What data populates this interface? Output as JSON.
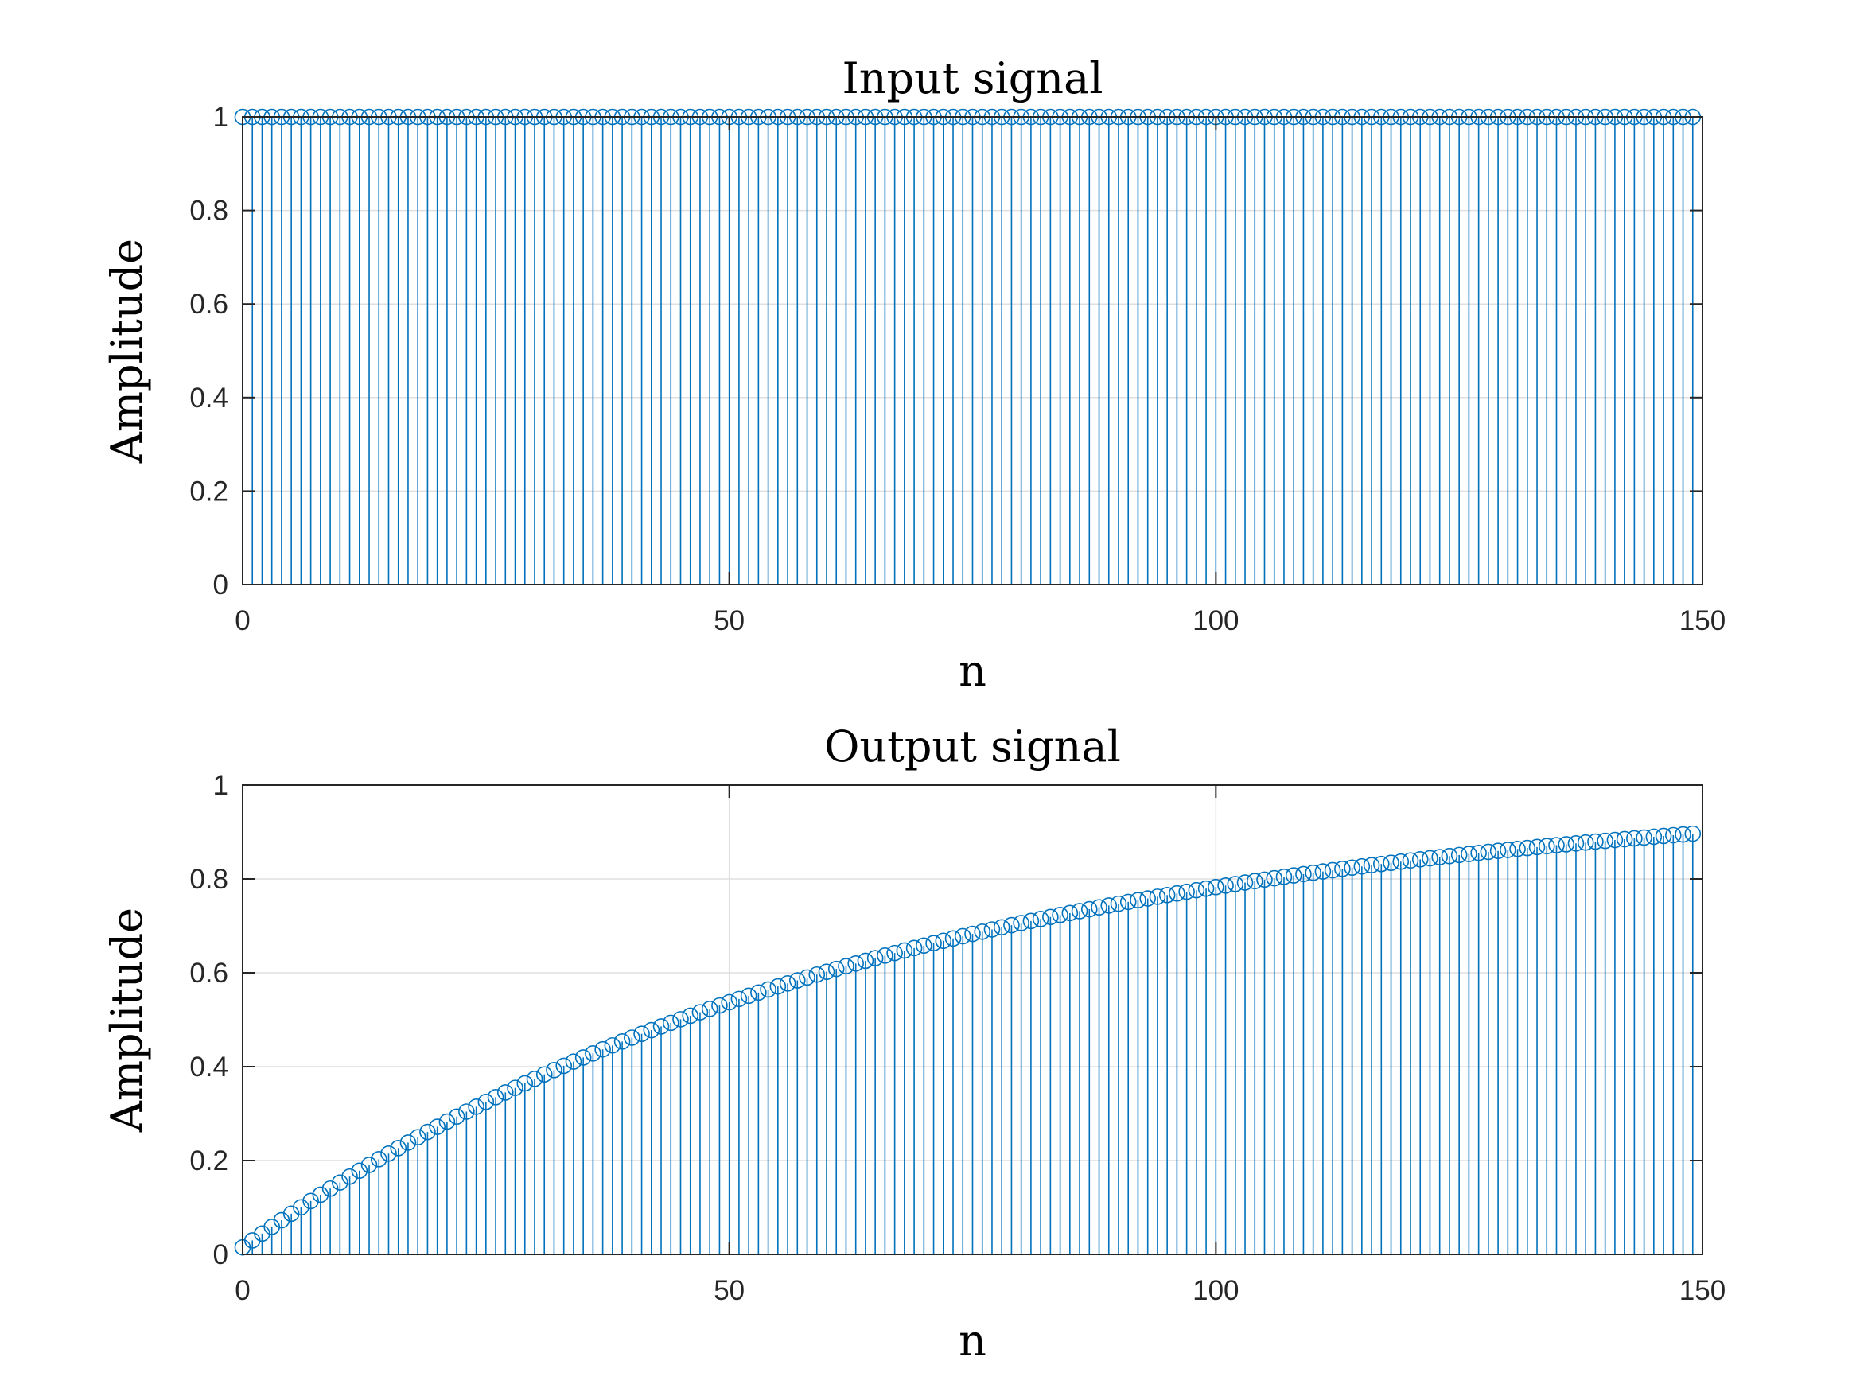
{
  "chart_data": [
    {
      "type": "stem",
      "title": "Input signal",
      "xlabel": "n",
      "ylabel": "Amplitude",
      "xlim": [
        0,
        150
      ],
      "ylim": [
        0,
        1
      ],
      "xticks": [
        0,
        50,
        100,
        150
      ],
      "yticks": [
        0,
        0.2,
        0.4,
        0.6,
        0.8,
        1
      ],
      "xtick_labels": [
        "0",
        "50",
        "100",
        "150"
      ],
      "ytick_labels": [
        "0",
        "0.2",
        "0.4",
        "0.6",
        "0.8",
        "1"
      ],
      "grid": true,
      "color": "#0072BD",
      "marker": "circle-open",
      "n_range": [
        0,
        149
      ],
      "values_rule": "constant 1 for n = 0..149"
    },
    {
      "type": "stem",
      "title": "Output signal",
      "xlabel": "n",
      "ylabel": "Amplitude",
      "xlim": [
        0,
        150
      ],
      "ylim": [
        0,
        1
      ],
      "xticks": [
        0,
        50,
        100,
        150
      ],
      "yticks": [
        0,
        0.2,
        0.4,
        0.6,
        0.8,
        1
      ],
      "xtick_labels": [
        "0",
        "50",
        "100",
        "150"
      ],
      "ytick_labels": [
        "0",
        "0.2",
        "0.4",
        "0.6",
        "0.8",
        "1"
      ],
      "grid": true,
      "color": "#0072BD",
      "marker": "circle-open",
      "n_range": [
        0,
        149
      ],
      "values_rule": "y[n] = 1 - 0.985^(n+1), n = 0..149 (0.015 at n=0, ~0.90 at n=149)"
    }
  ]
}
